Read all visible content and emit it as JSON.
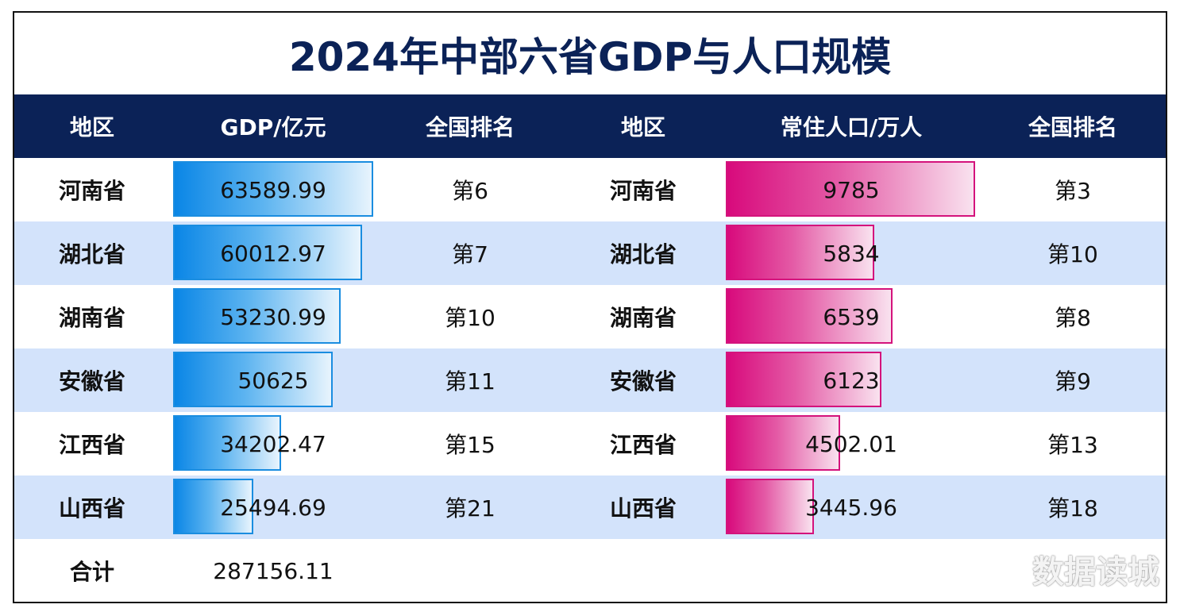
{
  "title": "2024年中部六省GDP与人口规模",
  "header": {
    "region": "地区",
    "gdp": "GDP/亿元",
    "gdp_rank": "全国排名",
    "region2": "地区",
    "pop": "常住人口/万人",
    "pop_rank": "全国排名"
  },
  "colors": {
    "header_bg": "#0b2257",
    "stripe": "#d3e3fb",
    "gdp_bar": "#0a86e6",
    "pop_bar": "#d80a7c"
  },
  "chart_data": {
    "type": "table",
    "title": "2024年中部六省GDP与人口规模",
    "gdp_max": 63589.99,
    "pop_max": 9785,
    "rows": [
      {
        "region": "河南省",
        "gdp": 63589.99,
        "gdp_label": "63589.99",
        "gdp_rank": "第6",
        "pop": 9785,
        "pop_label": "9785",
        "pop_rank": "第3"
      },
      {
        "region": "湖北省",
        "gdp": 60012.97,
        "gdp_label": "60012.97",
        "gdp_rank": "第7",
        "pop": 5834,
        "pop_label": "5834",
        "pop_rank": "第10"
      },
      {
        "region": "湖南省",
        "gdp": 53230.99,
        "gdp_label": "53230.99",
        "gdp_rank": "第10",
        "pop": 6539,
        "pop_label": "6539",
        "pop_rank": "第8"
      },
      {
        "region": "安徽省",
        "gdp": 50625,
        "gdp_label": "50625",
        "gdp_rank": "第11",
        "pop": 6123,
        "pop_label": "6123",
        "pop_rank": "第9"
      },
      {
        "region": "江西省",
        "gdp": 34202.47,
        "gdp_label": "34202.47",
        "gdp_rank": "第15",
        "pop": 4502.01,
        "pop_label": "4502.01",
        "pop_rank": "第13"
      },
      {
        "region": "山西省",
        "gdp": 25494.69,
        "gdp_label": "25494.69",
        "gdp_rank": "第21",
        "pop": 3445.96,
        "pop_label": "3445.96",
        "pop_rank": "第18"
      }
    ],
    "total": {
      "label": "合计",
      "gdp": "287156.11"
    }
  },
  "watermark": "数据读城"
}
